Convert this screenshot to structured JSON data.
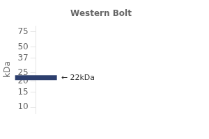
{
  "chart_data": {
    "type": "line",
    "title": "Western Bolt",
    "y_label": "kDa",
    "categories": [
      null
    ],
    "values": [
      22
    ],
    "color": "#2d3f6e",
    "marker": "line",
    "data_labels": true,
    "value_labels": [
      "← 22kDa"
    ],
    "log": "y",
    "ylim": [
      8.5,
      88
    ],
    "yticks": [
      10,
      15,
      20,
      25,
      37,
      50,
      75
    ],
    "grid": false,
    "tick_labels": "y"
  }
}
